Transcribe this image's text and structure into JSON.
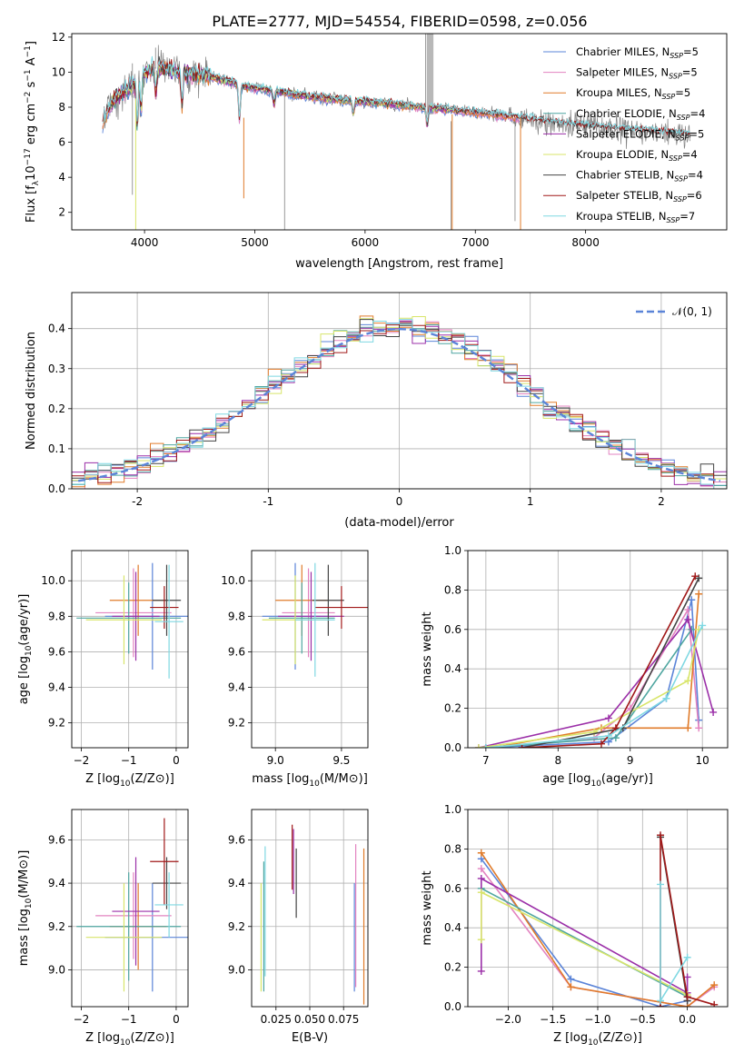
{
  "figure": {
    "title": "PLATE=2777, MJD=54554, FIBERID=0598, z=0.056"
  },
  "colors": {
    "Chabrier MILES": "#5b84d8",
    "Salpeter MILES": "#e383c0",
    "Kroupa MILES": "#e07b2a",
    "Chabrier ELODIE": "#4fa6a0",
    "Salpeter ELODIE": "#9b2fa8",
    "Kroupa ELODIE": "#d8e56a",
    "Chabrier STELIB": "#444444",
    "Salpeter STELIB": "#a01818",
    "Kroupa STELIB": "#7fd8e2",
    "data": "#808080",
    "normal": "#5b84d8"
  },
  "chart_data": [
    {
      "id": "spectrum",
      "type": "line",
      "xlabel": "wavelength [Angstrom, rest frame]",
      "ylabel": "Flux [f_λ 10^-17 erg cm^-2 s^-1 A^-1]",
      "xlim": [
        3340,
        9280
      ],
      "ylim": [
        1.0,
        12.2
      ],
      "xticks": [
        4000,
        5000,
        6000,
        7000,
        8000
      ],
      "yticks": [
        2,
        4,
        6,
        8,
        10,
        12
      ],
      "grid": false,
      "legend_position": "top-right",
      "legend": [
        {
          "model": "Chabrier MILES",
          "label": "Chabrier MILES, N",
          "sub": "SSP",
          "tail": "=5"
        },
        {
          "model": "Salpeter MILES",
          "label": "Salpeter MILES, N",
          "sub": "SSP",
          "tail": "=5"
        },
        {
          "model": "Kroupa MILES",
          "label": "Kroupa MILES, N",
          "sub": "SSP",
          "tail": "=5"
        },
        {
          "model": "Chabrier ELODIE",
          "label": "Chabrier ELODIE, N",
          "sub": "SSP",
          "tail": "=4"
        },
        {
          "model": "Salpeter ELODIE",
          "label": "Salpeter ELODIE, N",
          "sub": "SSP",
          "tail": "=5"
        },
        {
          "model": "Kroupa ELODIE",
          "label": "Kroupa ELODIE, N",
          "sub": "SSP",
          "tail": "=4"
        },
        {
          "model": "Chabrier STELIB",
          "label": "Chabrier STELIB, N",
          "sub": "SSP",
          "tail": "=4"
        },
        {
          "model": "Salpeter STELIB",
          "label": "Salpeter STELIB, N",
          "sub": "SSP",
          "tail": "=6"
        },
        {
          "model": "Kroupa STELIB",
          "label": "Kroupa STELIB, N",
          "sub": "SSP",
          "tail": "=7"
        }
      ],
      "continuum": [
        [
          3620,
          7.2
        ],
        [
          3700,
          8.2
        ],
        [
          3800,
          8.8
        ],
        [
          3900,
          9.3
        ],
        [
          4000,
          10.0
        ],
        [
          4100,
          10.3
        ],
        [
          4200,
          10.2
        ],
        [
          4300,
          10.0
        ],
        [
          4400,
          9.9
        ],
        [
          4500,
          9.9
        ],
        [
          4700,
          9.6
        ],
        [
          4900,
          9.2
        ],
        [
          5100,
          9.0
        ],
        [
          5300,
          8.8
        ],
        [
          5500,
          8.6
        ],
        [
          5800,
          8.4
        ],
        [
          6000,
          8.3
        ],
        [
          6200,
          8.2
        ],
        [
          6500,
          8.0
        ],
        [
          6700,
          7.9
        ],
        [
          7000,
          7.7
        ],
        [
          7300,
          7.5
        ],
        [
          7600,
          7.2
        ],
        [
          8000,
          6.9
        ],
        [
          8400,
          6.7
        ],
        [
          8800,
          6.5
        ],
        [
          8950,
          6.4
        ]
      ]
    },
    {
      "id": "residuals",
      "type": "histogram",
      "xlabel": "(data-model)/error",
      "ylabel": "Normed distribution",
      "xlim": [
        -2.5,
        2.5
      ],
      "ylim": [
        0,
        0.49
      ],
      "xticks": [
        -2,
        -1,
        0,
        1,
        2
      ],
      "yticks": [
        0.0,
        0.1,
        0.2,
        0.3,
        0.4
      ],
      "grid": true,
      "legend": [
        {
          "label": "𝒩(0, 1)",
          "style": "dashed"
        }
      ]
    },
    {
      "id": "age_vs_Z",
      "type": "errorbar",
      "xlabel_pre": "Z [log",
      "xlabel_sub": "10",
      "xlabel_post": "(Z/Z⊙)]",
      "ylabel_pre": "age  [log",
      "ylabel_sub": "10",
      "ylabel_post": "(age/yr)]",
      "xlim": [
        -2.2,
        0.25
      ],
      "ylim": [
        9.06,
        10.17
      ],
      "xticks": [
        -2,
        -1,
        0
      ],
      "yticks": [
        9.2,
        9.4,
        9.6,
        9.8,
        10.0
      ],
      "grid": true,
      "points": [
        {
          "model": "Chabrier MILES",
          "x": -0.5,
          "xerr": 1.0,
          "y": 9.8,
          "yerr": 0.3
        },
        {
          "model": "Salpeter MILES",
          "x": -0.9,
          "xerr": 0.8,
          "y": 9.82,
          "yerr": 0.25
        },
        {
          "model": "Kroupa MILES",
          "x": -0.8,
          "xerr": 0.6,
          "y": 9.89,
          "yerr": 0.2
        },
        {
          "model": "Chabrier ELODIE",
          "x": -1.0,
          "xerr": 1.1,
          "y": 9.79,
          "yerr": 0.2
        },
        {
          "model": "Salpeter ELODIE",
          "x": -0.85,
          "xerr": 0.5,
          "y": 9.8,
          "yerr": 0.25
        },
        {
          "model": "Kroupa ELODIE",
          "x": -1.1,
          "xerr": 0.8,
          "y": 9.78,
          "yerr": 0.25
        },
        {
          "model": "Chabrier STELIB",
          "x": -0.2,
          "xerr": 0.3,
          "y": 9.89,
          "yerr": 0.2
        },
        {
          "model": "Salpeter STELIB",
          "x": -0.25,
          "xerr": 0.3,
          "y": 9.85,
          "yerr": 0.12
        },
        {
          "model": "Kroupa STELIB",
          "x": -0.15,
          "xerr": 0.3,
          "y": 9.77,
          "yerr": 0.32
        }
      ]
    },
    {
      "id": "age_vs_mass",
      "type": "errorbar",
      "xlabel_pre": "mass [log",
      "xlabel_sub": "10",
      "xlabel_post": "(M/M⊙)]",
      "xlim": [
        8.82,
        9.7
      ],
      "ylim": [
        9.06,
        10.17
      ],
      "xticks": [
        9.0,
        9.5
      ],
      "yticks": [
        9.2,
        9.4,
        9.6,
        9.8,
        10.0
      ],
      "grid": true,
      "points": [
        {
          "model": "Chabrier MILES",
          "x": 9.15,
          "xerr": 0.25,
          "y": 9.8,
          "yerr": 0.3
        },
        {
          "model": "Salpeter MILES",
          "x": 9.25,
          "xerr": 0.2,
          "y": 9.82,
          "yerr": 0.25
        },
        {
          "model": "Kroupa MILES",
          "x": 9.2,
          "xerr": 0.2,
          "y": 9.89,
          "yerr": 0.2
        },
        {
          "model": "Chabrier ELODIE",
          "x": 9.2,
          "xerr": 0.25,
          "y": 9.79,
          "yerr": 0.2
        },
        {
          "model": "Salpeter ELODIE",
          "x": 9.27,
          "xerr": 0.25,
          "y": 9.8,
          "yerr": 0.25
        },
        {
          "model": "Kroupa ELODIE",
          "x": 9.15,
          "xerr": 0.25,
          "y": 9.78,
          "yerr": 0.25
        },
        {
          "model": "Chabrier STELIB",
          "x": 9.4,
          "xerr": 0.12,
          "y": 9.89,
          "yerr": 0.2
        },
        {
          "model": "Salpeter STELIB",
          "x": 9.5,
          "xerr": 0.2,
          "y": 9.85,
          "yerr": 0.12
        },
        {
          "model": "Kroupa STELIB",
          "x": 9.3,
          "xerr": 0.15,
          "y": 9.78,
          "yerr": 0.32
        }
      ]
    },
    {
      "id": "weight_vs_age",
      "type": "line",
      "xlabel_pre": "age  [log",
      "xlabel_sub": "10",
      "xlabel_post": "(age/yr)]",
      "ylabel": "mass weight",
      "xlim": [
        6.75,
        10.35
      ],
      "ylim": [
        0,
        1.0
      ],
      "xticks": [
        7,
        8,
        9,
        10
      ],
      "yticks": [
        0.0,
        0.2,
        0.4,
        0.6,
        0.8,
        1.0
      ],
      "grid": true,
      "series": [
        {
          "model": "Chabrier MILES",
          "points": [
            [
              7.0,
              0.0
            ],
            [
              8.7,
              0.03
            ],
            [
              9.5,
              0.25
            ],
            [
              9.85,
              0.75
            ],
            [
              9.95,
              0.14
            ]
          ]
        },
        {
          "model": "Salpeter MILES",
          "points": [
            [
              7.0,
              0.0
            ],
            [
              8.5,
              0.05
            ],
            [
              9.0,
              0.2
            ],
            [
              9.8,
              0.7
            ],
            [
              9.95,
              0.1
            ]
          ]
        },
        {
          "model": "Kroupa MILES",
          "points": [
            [
              7.1,
              0.0
            ],
            [
              8.6,
              0.1
            ],
            [
              9.8,
              0.1
            ],
            [
              9.95,
              0.78
            ]
          ]
        },
        {
          "model": "Chabrier ELODIE",
          "points": [
            [
              7.0,
              0.0
            ],
            [
              8.8,
              0.05
            ],
            [
              9.85,
              0.6
            ]
          ]
        },
        {
          "model": "Salpeter ELODIE",
          "points": [
            [
              6.9,
              0.0
            ],
            [
              8.7,
              0.15
            ],
            [
              9.8,
              0.65
            ],
            [
              10.15,
              0.18
            ]
          ]
        },
        {
          "model": "Kroupa ELODIE",
          "points": [
            [
              6.9,
              0.0
            ],
            [
              8.5,
              0.08
            ],
            [
              9.8,
              0.34
            ],
            [
              9.95,
              0.6
            ]
          ]
        },
        {
          "model": "Chabrier STELIB",
          "points": [
            [
              7.5,
              0.0
            ],
            [
              8.9,
              0.1
            ],
            [
              9.95,
              0.86
            ]
          ]
        },
        {
          "model": "Salpeter STELIB",
          "points": [
            [
              7.5,
              0.0
            ],
            [
              8.6,
              0.02
            ],
            [
              8.8,
              0.1
            ],
            [
              9.9,
              0.87
            ]
          ]
        },
        {
          "model": "Kroupa STELIB",
          "points": [
            [
              7.0,
              0.0
            ],
            [
              8.7,
              0.06
            ],
            [
              9.5,
              0.25
            ],
            [
              10.0,
              0.62
            ]
          ]
        }
      ]
    },
    {
      "id": "mass_vs_Z",
      "type": "errorbar",
      "xlabel_pre": "Z [log",
      "xlabel_sub": "10",
      "xlabel_post": "(Z/Z⊙)]",
      "ylabel_pre": "mass [log",
      "ylabel_sub": "10",
      "ylabel_post": "(M/M⊙)]",
      "xlim": [
        -2.2,
        0.25
      ],
      "ylim": [
        8.83,
        9.74
      ],
      "xticks": [
        -2,
        -1,
        0
      ],
      "yticks": [
        9.0,
        9.2,
        9.4,
        9.6
      ],
      "grid": true,
      "points": [
        {
          "model": "Chabrier MILES",
          "x": -0.5,
          "xerr": 1.0,
          "y": 9.15,
          "yerr": 0.25
        },
        {
          "model": "Salpeter MILES",
          "x": -0.9,
          "xerr": 0.8,
          "y": 9.25,
          "yerr": 0.2
        },
        {
          "model": "Kroupa MILES",
          "x": -0.8,
          "xerr": 0.6,
          "y": 9.2,
          "yerr": 0.2
        },
        {
          "model": "Chabrier ELODIE",
          "x": -1.0,
          "xerr": 1.1,
          "y": 9.2,
          "yerr": 0.25
        },
        {
          "model": "Salpeter ELODIE",
          "x": -0.85,
          "xerr": 0.5,
          "y": 9.27,
          "yerr": 0.25
        },
        {
          "model": "Kroupa ELODIE",
          "x": -1.1,
          "xerr": 0.8,
          "y": 9.15,
          "yerr": 0.25
        },
        {
          "model": "Chabrier STELIB",
          "x": -0.2,
          "xerr": 0.3,
          "y": 9.4,
          "yerr": 0.12
        },
        {
          "model": "Salpeter STELIB",
          "x": -0.25,
          "xerr": 0.3,
          "y": 9.5,
          "yerr": 0.2
        },
        {
          "model": "Kroupa STELIB",
          "x": -0.15,
          "xerr": 0.3,
          "y": 9.3,
          "yerr": 0.15
        }
      ]
    },
    {
      "id": "mass_vs_ebv",
      "type": "errorbar",
      "xlabel": "E(B-V)",
      "xlim": [
        0.007,
        0.093
      ],
      "ylim": [
        8.83,
        9.74
      ],
      "xticks": [
        0.025,
        0.05,
        0.075
      ],
      "xticklabels": [
        "0.025",
        "0.050",
        "0.075"
      ],
      "yticks": [
        9.0,
        9.2,
        9.4,
        9.6
      ],
      "grid": true,
      "points": [
        {
          "model": "Chabrier MILES",
          "x": 0.083,
          "y": 9.15,
          "yerr": 0.25
        },
        {
          "model": "Salpeter MILES",
          "x": 0.084,
          "y": 9.25,
          "yerr": 0.33
        },
        {
          "model": "Kroupa MILES",
          "x": 0.09,
          "y": 9.2,
          "yerr": 0.36
        },
        {
          "model": "Chabrier ELODIE",
          "x": 0.016,
          "y": 9.2,
          "yerr": 0.3
        },
        {
          "model": "Salpeter ELODIE",
          "x": 0.038,
          "y": 9.5,
          "yerr": 0.15
        },
        {
          "model": "Kroupa ELODIE",
          "x": 0.014,
          "y": 9.15,
          "yerr": 0.25
        },
        {
          "model": "Chabrier STELIB",
          "x": 0.04,
          "y": 9.4,
          "yerr": 0.16
        },
        {
          "model": "Salpeter STELIB",
          "x": 0.037,
          "y": 9.52,
          "yerr": 0.15
        },
        {
          "model": "Kroupa STELIB",
          "x": 0.017,
          "y": 9.27,
          "yerr": 0.3
        }
      ]
    },
    {
      "id": "weight_vs_Z",
      "type": "line",
      "xlabel_pre": "Z [log",
      "xlabel_sub": "10",
      "xlabel_post": "(Z/Z⊙)]",
      "ylabel": "mass weight",
      "xlim": [
        -2.45,
        0.45
      ],
      "ylim": [
        0,
        1.0
      ],
      "xticks": [
        -2.0,
        -1.5,
        -1.0,
        -0.5,
        0.0
      ],
      "xticklabels": [
        "−2.0",
        "−1.5",
        "−1.0",
        "−0.5",
        "0.0"
      ],
      "yticks": [
        0.0,
        0.2,
        0.4,
        0.6,
        0.8,
        1.0
      ],
      "grid": true,
      "series": [
        {
          "model": "Chabrier MILES",
          "points": [
            [
              -2.3,
              0.75
            ],
            [
              -1.3,
              0.14
            ],
            [
              -0.3,
              0.0
            ],
            [
              0.0,
              0.03
            ]
          ]
        },
        {
          "model": "Salpeter MILES",
          "points": [
            [
              -2.3,
              0.7
            ],
            [
              -1.3,
              0.1
            ],
            [
              0.0,
              0.0
            ],
            [
              0.3,
              0.1
            ]
          ]
        },
        {
          "model": "Kroupa MILES",
          "points": [
            [
              -2.3,
              0.78
            ],
            [
              -1.3,
              0.1
            ],
            [
              0.0,
              0.0
            ],
            [
              0.3,
              0.11
            ]
          ]
        },
        {
          "model": "Chabrier ELODIE",
          "points": [
            [
              -2.3,
              0.6
            ],
            [
              0.0,
              0.05
            ]
          ]
        },
        {
          "model": "Salpeter ELODIE",
          "points": [
            [
              -2.3,
              0.18
            ],
            [
              -2.3,
              0.65
            ],
            [
              0.0,
              0.07
            ],
            [
              0.0,
              0.15
            ]
          ]
        },
        {
          "model": "Kroupa ELODIE",
          "points": [
            [
              -2.3,
              0.34
            ],
            [
              -2.3,
              0.58
            ],
            [
              0.0,
              0.06
            ]
          ]
        },
        {
          "model": "Chabrier STELIB",
          "points": [
            [
              -0.3,
              0.86
            ],
            [
              0.0,
              0.03
            ]
          ]
        },
        {
          "model": "Salpeter STELIB",
          "points": [
            [
              -0.3,
              0.0
            ],
            [
              -0.3,
              0.87
            ],
            [
              0.0,
              0.05
            ],
            [
              0.3,
              0.01
            ]
          ]
        },
        {
          "model": "Kroupa STELIB",
          "points": [
            [
              -0.3,
              0.62
            ],
            [
              -0.3,
              0.03
            ],
            [
              0.0,
              0.25
            ]
          ]
        }
      ]
    }
  ]
}
